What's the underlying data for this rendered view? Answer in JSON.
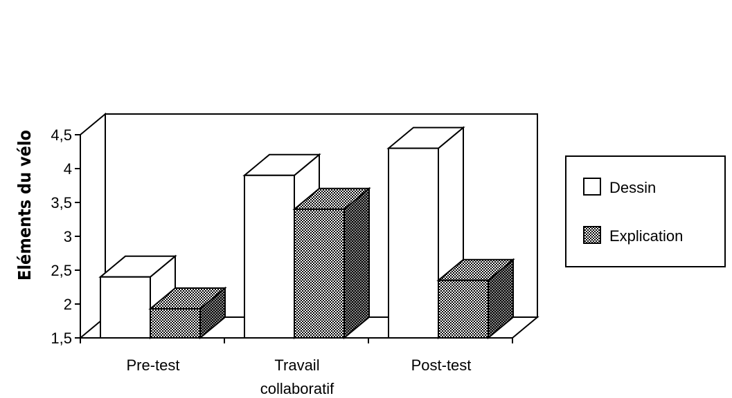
{
  "chart_data": {
    "type": "bar",
    "title": "",
    "xlabel": "",
    "ylabel": "Eléments du vélo",
    "ylim": [
      1.5,
      4.5
    ],
    "yticks": [
      "1,5",
      "2",
      "2,5",
      "3",
      "3,5",
      "4",
      "4,5"
    ],
    "categories": [
      [
        "Pre-test"
      ],
      [
        "Travail",
        "collaboratif"
      ],
      [
        "Post-test"
      ]
    ],
    "series": [
      {
        "name": "Dessin",
        "values": [
          2.4,
          3.9,
          4.3
        ],
        "fill": "#ffffff"
      },
      {
        "name": "Explication",
        "values": [
          1.93,
          3.4,
          2.35
        ],
        "fill": "stipple"
      }
    ],
    "legend_position": "right",
    "grid": false,
    "style": "3d"
  }
}
